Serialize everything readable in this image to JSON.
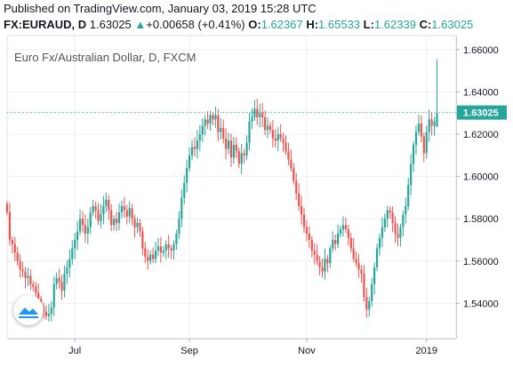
{
  "header": {
    "published": "Published on TradingView.com, January 03, 2019 15:28 UTC",
    "symbol": "FX:EURAUD, D",
    "last": "1.63025",
    "change_arrow": "▲",
    "change": "+0.00658 (+0.41%)",
    "o_label": "O:",
    "o_value": "1.62367",
    "h_label": "H:",
    "h_value": "1.65533",
    "l_label": "L:",
    "l_value": "1.62339",
    "c_label": "C:",
    "c_value": "1.63025"
  },
  "watermark": "Euro Fx/Australian Dollar, D, FXCM",
  "logo_icon": "tradingview-logo-icon",
  "colors": {
    "up": "#26a69a",
    "down": "#ef5350",
    "grid": "#eef0f3",
    "axis": "#b2b5be",
    "price_tag": "#26a69a"
  },
  "chart_data": {
    "type": "candlestick",
    "title": "",
    "xlabel": "",
    "ylabel": "",
    "ylim": [
      1.52333,
      1.66667
    ],
    "grid": true,
    "y_ticks": [
      "1.66000",
      "1.64000",
      "1.62000",
      "1.60000",
      "1.58000",
      "1.56000",
      "1.54000"
    ],
    "x_ticks": [
      {
        "label": "Jul",
        "index": 26
      },
      {
        "label": "Sep",
        "index": 70
      },
      {
        "label": "Nov",
        "index": 115
      },
      {
        "label": "2019",
        "index": 161
      }
    ],
    "last_price": 1.63025,
    "last_price_label": "1.63025",
    "closes": [
      1.583,
      1.57,
      1.568,
      1.564,
      1.56,
      1.556,
      1.555,
      1.552,
      1.553,
      1.549,
      1.548,
      1.545,
      1.542,
      1.538,
      1.536,
      1.534,
      1.535,
      1.538,
      1.549,
      1.552,
      1.55,
      1.546,
      1.554,
      1.557,
      1.561,
      1.566,
      1.57,
      1.574,
      1.58,
      1.577,
      1.573,
      1.576,
      1.583,
      1.586,
      1.584,
      1.579,
      1.582,
      1.586,
      1.589,
      1.584,
      1.577,
      1.58,
      1.578,
      1.583,
      1.586,
      1.584,
      1.581,
      1.585,
      1.58,
      1.576,
      1.578,
      1.574,
      1.566,
      1.562,
      1.56,
      1.563,
      1.561,
      1.565,
      1.567,
      1.564,
      1.565,
      1.568,
      1.566,
      1.565,
      1.568,
      1.573,
      1.58,
      1.59,
      1.597,
      1.604,
      1.61,
      1.614,
      1.613,
      1.617,
      1.62,
      1.624,
      1.627,
      1.625,
      1.629,
      1.627,
      1.629,
      1.621,
      1.623,
      1.618,
      1.613,
      1.617,
      1.609,
      1.615,
      1.612,
      1.606,
      1.611,
      1.61,
      1.616,
      1.626,
      1.628,
      1.632,
      1.628,
      1.63,
      1.628,
      1.622,
      1.624,
      1.622,
      1.618,
      1.617,
      1.62,
      1.618,
      1.616,
      1.612,
      1.608,
      1.604,
      1.598,
      1.592,
      1.586,
      1.582,
      1.576,
      1.573,
      1.57,
      1.565,
      1.563,
      1.56,
      1.557,
      1.555,
      1.561,
      1.559,
      1.566,
      1.57,
      1.568,
      1.573,
      1.575,
      1.577,
      1.575,
      1.571,
      1.566,
      1.561,
      1.559,
      1.556,
      1.554,
      1.543,
      1.537,
      1.541,
      1.549,
      1.557,
      1.566,
      1.571,
      1.576,
      1.58,
      1.584,
      1.583,
      1.578,
      1.573,
      1.571,
      1.576,
      1.582,
      1.586,
      1.596,
      1.606,
      1.615,
      1.621,
      1.625,
      1.619,
      1.611,
      1.621,
      1.627,
      1.624,
      1.626,
      1.63
    ],
    "ohlc": []
  }
}
